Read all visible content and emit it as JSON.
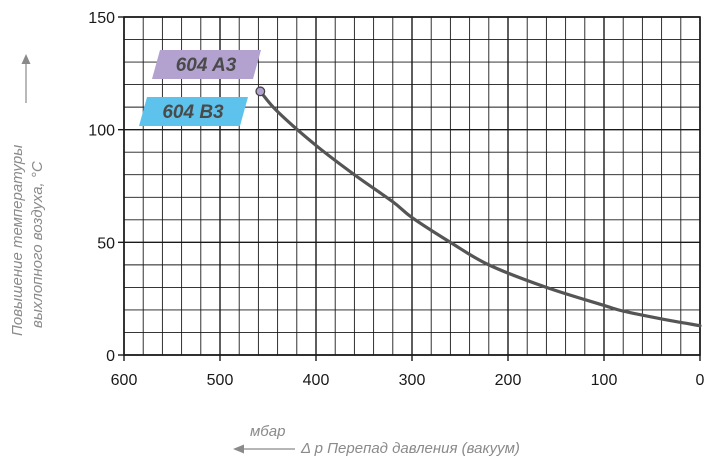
{
  "chart_data": {
    "type": "line",
    "title": "",
    "xlabel": "Δ p Перепад давления (вакуум)",
    "xunit": "мбар",
    "ylabel_line1": "Повышение температуры",
    "ylabel_line2": "выхлопного воздуха, °C",
    "xlim": [
      600,
      0
    ],
    "ylim": [
      0,
      150
    ],
    "x_ticks": [
      600,
      500,
      400,
      300,
      200,
      100,
      0
    ],
    "y_ticks": [
      0,
      50,
      100,
      150
    ],
    "grid": true,
    "series": [
      {
        "name": "604 A3 / 604 B3",
        "color": "#555555",
        "points": [
          [
            458,
            117
          ],
          [
            440,
            108
          ],
          [
            400,
            93
          ],
          [
            360,
            80
          ],
          [
            320,
            68
          ],
          [
            300,
            61
          ],
          [
            260,
            50
          ],
          [
            220,
            40
          ],
          [
            160,
            30
          ],
          [
            100,
            22
          ],
          [
            80,
            19.5
          ],
          [
            40,
            16
          ],
          [
            0,
            13
          ]
        ]
      }
    ],
    "labels": [
      {
        "text": "604 A3",
        "color": "#b3a2d0"
      },
      {
        "text": "604 B3",
        "color": "#5ec3ec"
      }
    ]
  }
}
